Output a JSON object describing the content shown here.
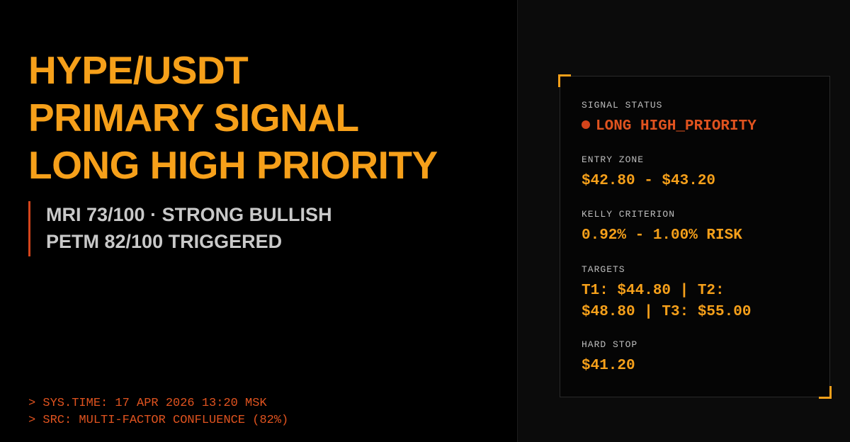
{
  "headline": {
    "line1": "HYPE/USDT",
    "line2": "PRIMARY SIGNAL",
    "line3": "LONG HIGH PRIORITY"
  },
  "metrics": {
    "line1": "MRI 73/100 · STRONG BULLISH",
    "line2": "PETM 82/100 TRIGGERED"
  },
  "system": {
    "time_line": "> SYS.TIME: 17 APR 2026 13:20 MSK",
    "src_line": "> SRC: MULTI-FACTOR CONFLUENCE (82%)"
  },
  "panel": {
    "signal_status_label": "SIGNAL STATUS",
    "signal_status_value": "LONG HIGH_PRIORITY",
    "entry_zone_label": "ENTRY ZONE",
    "entry_zone_value": "$42.80 - $43.20",
    "kelly_label": "KELLY CRITERION",
    "kelly_value": "0.92% - 1.00% RISK",
    "targets_label": "TARGETS",
    "targets_line1": "T1: $44.80 | T2:",
    "targets_line2": "$48.80 | T3: $55.00",
    "hard_stop_label": "HARD STOP",
    "hard_stop_value": "$41.20"
  },
  "colors": {
    "accent": "#f6a01a",
    "alert": "#e0531f",
    "background": "#000000",
    "panel_background": "#0b0b0b"
  }
}
